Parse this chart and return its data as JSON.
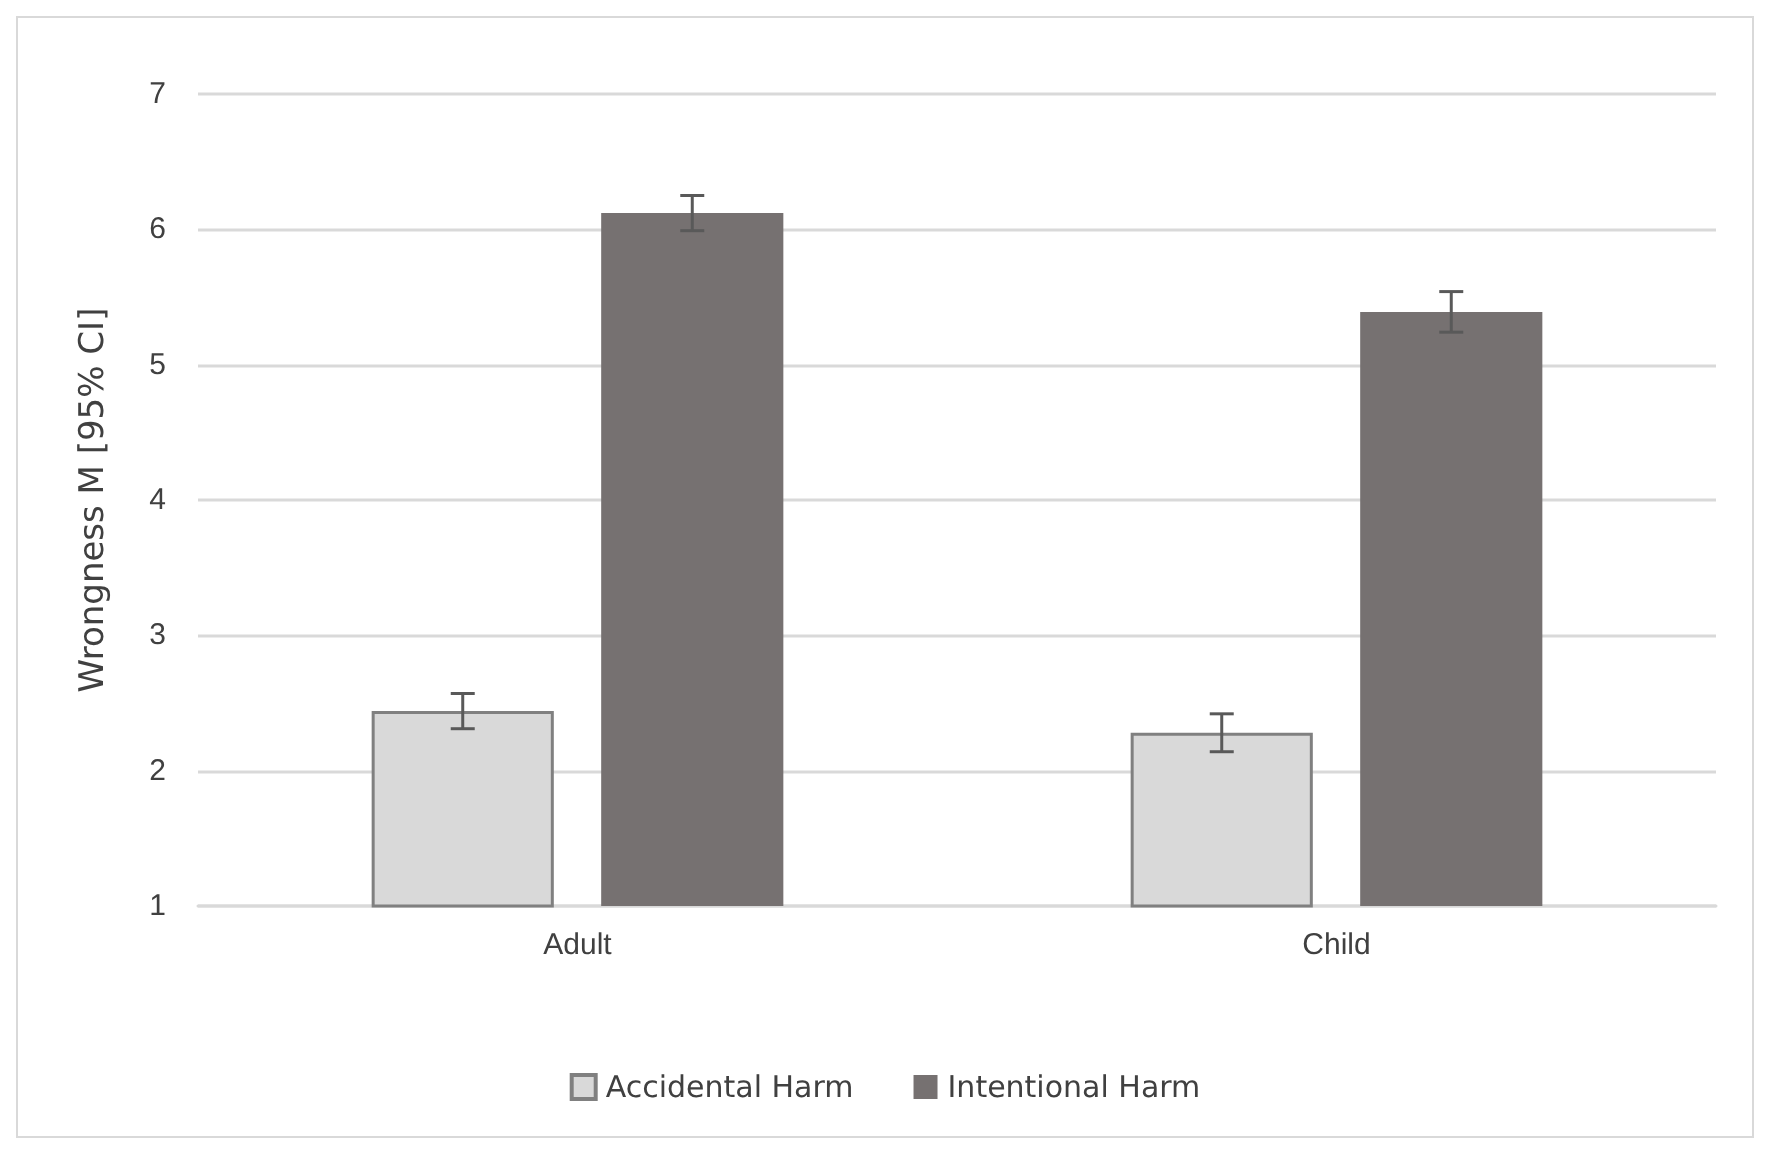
{
  "chart_data": {
    "type": "bar",
    "ylabel": "Wrongness M [95% CI]",
    "categories": [
      "Adult",
      "Child"
    ],
    "series": [
      {
        "name": "Accidental Harm",
        "color": "#d9d9d9",
        "values": [
          2.44,
          2.28
        ],
        "errors": [
          0.13,
          0.14
        ]
      },
      {
        "name": "Intentional Harm",
        "color": "#767171",
        "values": [
          6.12,
          5.39
        ],
        "errors": [
          0.13,
          0.15
        ]
      }
    ],
    "ylim": [
      1,
      7
    ],
    "yticks": [
      1,
      2,
      3,
      4,
      5,
      6,
      7
    ],
    "grid": "y",
    "legend": "bottom"
  }
}
